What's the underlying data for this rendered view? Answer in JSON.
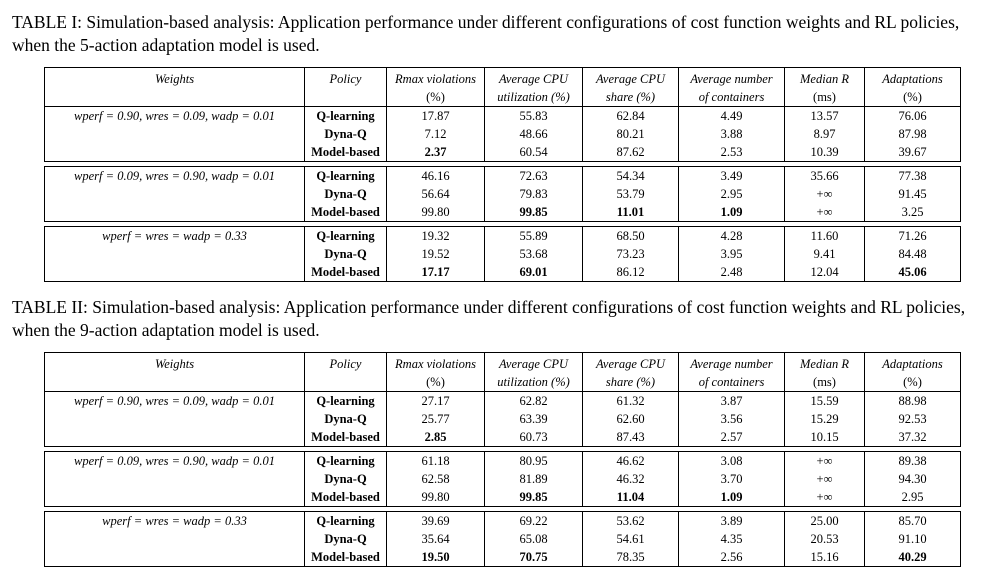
{
  "tables": [
    {
      "caption": "TABLE I: Simulation-based analysis: Application performance under different configurations of cost function weights and RL policies, when the 5-action adaptation model is used.",
      "headers": {
        "row1": [
          "Weights",
          "Policy",
          "Rmax violations",
          "Average CPU",
          "Average CPU",
          "Average number",
          "Median R",
          "Adaptations"
        ],
        "row2": [
          "",
          "",
          "(%)",
          "utilization (%)",
          "share (%)",
          "of containers",
          "(ms)",
          "(%)"
        ]
      },
      "groups": [
        {
          "weights": "wperf = 0.90, wres = 0.09, wadp = 0.01",
          "rows": [
            [
              "Q-learning",
              "17.87",
              "55.83",
              "62.84",
              "4.49",
              "13.57",
              "76.06"
            ],
            [
              "Dyna-Q",
              "7.12",
              "48.66",
              "80.21",
              "3.88",
              "8.97",
              "87.98"
            ],
            [
              "Model-based",
              "2.37",
              "60.54",
              "87.62",
              "2.53",
              "10.39",
              "39.67"
            ]
          ]
        },
        {
          "weights": "wperf = 0.09, wres = 0.90, wadp = 0.01",
          "rows": [
            [
              "Q-learning",
              "46.16",
              "72.63",
              "54.34",
              "3.49",
              "35.66",
              "77.38"
            ],
            [
              "Dyna-Q",
              "56.64",
              "79.83",
              "53.79",
              "2.95",
              "+∞",
              "91.45"
            ],
            [
              "Model-based",
              "99.80",
              "99.85",
              "11.01",
              "1.09",
              "+∞",
              "3.25"
            ]
          ]
        },
        {
          "weights": "wperf = wres = wadp = 0.33",
          "rows": [
            [
              "Q-learning",
              "19.32",
              "55.89",
              "68.50",
              "4.28",
              "11.60",
              "71.26"
            ],
            [
              "Dyna-Q",
              "19.52",
              "53.68",
              "73.23",
              "3.95",
              "9.41",
              "84.48"
            ],
            [
              "Model-based",
              "17.17",
              "69.01",
              "86.12",
              "2.48",
              "12.04",
              "45.06"
            ]
          ]
        }
      ]
    },
    {
      "caption": "TABLE II: Simulation-based analysis: Application performance under different configurations of cost function weights and RL policies, when the 9-action adaptation model is used.",
      "headers": {
        "row1": [
          "Weights",
          "Policy",
          "Rmax violations",
          "Average CPU",
          "Average CPU",
          "Average number",
          "Median R",
          "Adaptations"
        ],
        "row2": [
          "",
          "",
          "(%)",
          "utilization (%)",
          "share (%)",
          "of containers",
          "(ms)",
          "(%)"
        ]
      },
      "groups": [
        {
          "weights": "wperf = 0.90, wres = 0.09, wadp = 0.01",
          "rows": [
            [
              "Q-learning",
              "27.17",
              "62.82",
              "61.32",
              "3.87",
              "15.59",
              "88.98"
            ],
            [
              "Dyna-Q",
              "25.77",
              "63.39",
              "62.60",
              "3.56",
              "15.29",
              "92.53"
            ],
            [
              "Model-based",
              "2.85",
              "60.73",
              "87.43",
              "2.57",
              "10.15",
              "37.32"
            ]
          ]
        },
        {
          "weights": "wperf = 0.09, wres = 0.90, wadp = 0.01",
          "rows": [
            [
              "Q-learning",
              "61.18",
              "80.95",
              "46.62",
              "3.08",
              "+∞",
              "89.38"
            ],
            [
              "Dyna-Q",
              "62.58",
              "81.89",
              "46.32",
              "3.70",
              "+∞",
              "94.30"
            ],
            [
              "Model-based",
              "99.80",
              "99.85",
              "11.04",
              "1.09",
              "+∞",
              "2.95"
            ]
          ]
        },
        {
          "weights": "wperf = wres = wadp = 0.33",
          "rows": [
            [
              "Q-learning",
              "39.69",
              "69.22",
              "53.62",
              "3.89",
              "25.00",
              "85.70"
            ],
            [
              "Dyna-Q",
              "35.64",
              "65.08",
              "54.61",
              "4.35",
              "20.53",
              "91.10"
            ],
            [
              "Model-based",
              "19.50",
              "70.75",
              "78.35",
              "2.56",
              "15.16",
              "40.29"
            ]
          ]
        }
      ]
    }
  ]
}
